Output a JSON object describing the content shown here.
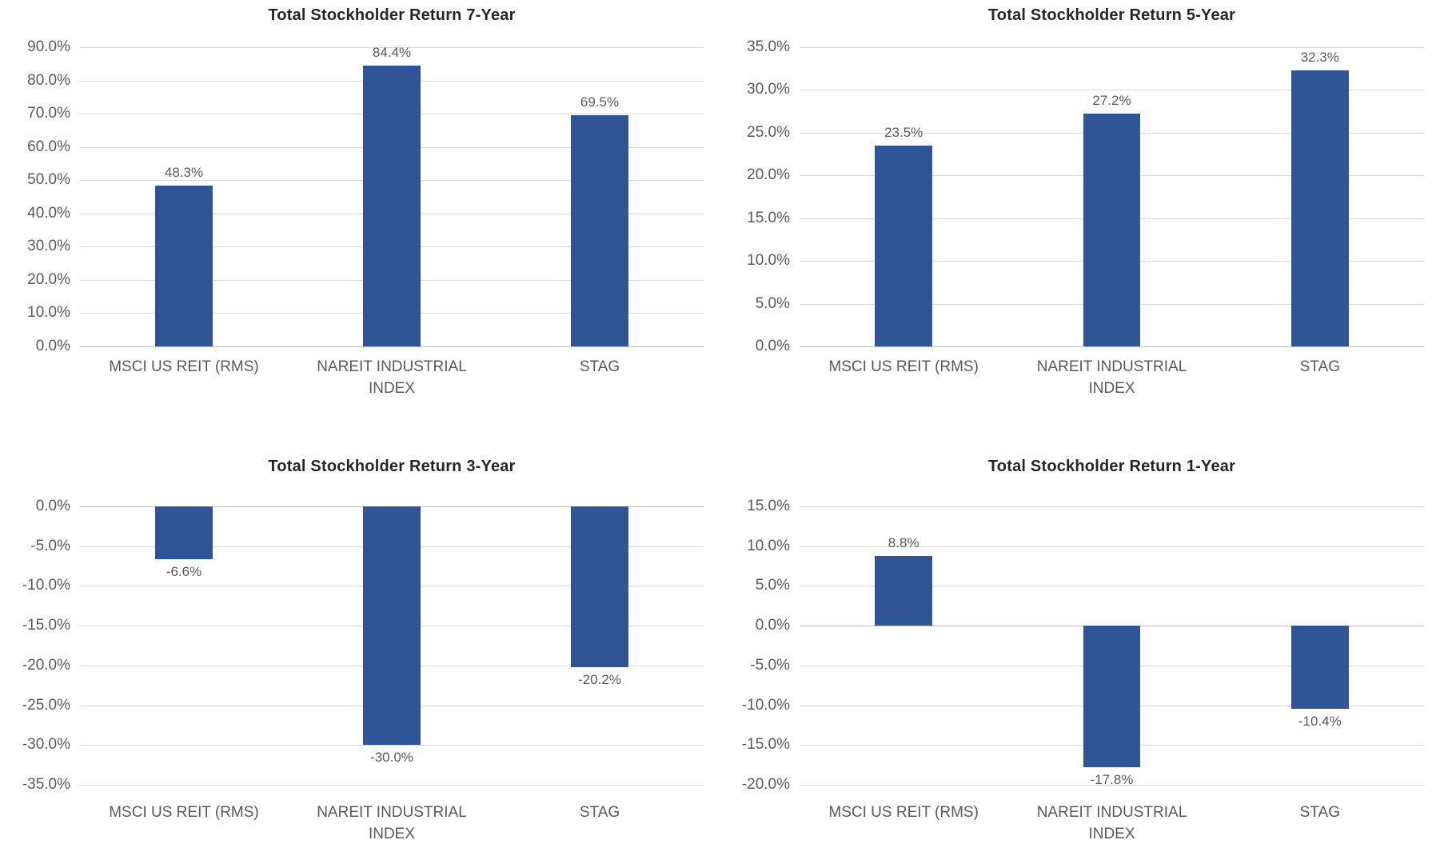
{
  "style": {
    "background": "#FFFFFF",
    "bar_color": "#2F5597",
    "gridline_color": "#D9D9D9",
    "zero_line_color": "#BFBFBF",
    "title_color": "#262626",
    "axis_label_color": "#595959",
    "data_label_color": "#595959"
  },
  "chart_data": [
    {
      "type": "bar",
      "title": "Total Stockholder Return 7-Year",
      "categories": [
        "MSCI US REIT (RMS)",
        "NAREIT INDUSTRIAL\nINDEX",
        "STAG"
      ],
      "values": [
        48.3,
        84.4,
        69.5
      ],
      "data_labels": [
        "48.3%",
        "84.4%",
        "69.5%"
      ],
      "ylim": [
        0,
        90
      ],
      "yticks": [
        {
          "value": 90,
          "label": "90.0%"
        },
        {
          "value": 80,
          "label": "80.0%"
        },
        {
          "value": 70,
          "label": "70.0%"
        },
        {
          "value": 60,
          "label": "60.0%"
        },
        {
          "value": 50,
          "label": "50.0%"
        },
        {
          "value": 40,
          "label": "40.0%"
        },
        {
          "value": 30,
          "label": "30.0%"
        },
        {
          "value": 20,
          "label": "20.0%"
        },
        {
          "value": 10,
          "label": "10.0%"
        },
        {
          "value": 0,
          "label": "0.0%"
        }
      ],
      "xlabel": "",
      "ylabel": "",
      "grid": true,
      "legend": "none"
    },
    {
      "type": "bar",
      "title": "Total Stockholder Return 5-Year",
      "categories": [
        "MSCI US REIT (RMS)",
        "NAREIT INDUSTRIAL\nINDEX",
        "STAG"
      ],
      "values": [
        23.5,
        27.2,
        32.3
      ],
      "data_labels": [
        "23.5%",
        "27.2%",
        "32.3%"
      ],
      "ylim": [
        0,
        35
      ],
      "yticks": [
        {
          "value": 35,
          "label": "35.0%"
        },
        {
          "value": 30,
          "label": "30.0%"
        },
        {
          "value": 25,
          "label": "25.0%"
        },
        {
          "value": 20,
          "label": "20.0%"
        },
        {
          "value": 15,
          "label": "15.0%"
        },
        {
          "value": 10,
          "label": "10.0%"
        },
        {
          "value": 5,
          "label": "5.0%"
        },
        {
          "value": 0,
          "label": "0.0%"
        }
      ],
      "xlabel": "",
      "ylabel": "",
      "grid": true,
      "legend": "none"
    },
    {
      "type": "bar",
      "title": "Total Stockholder Return 3-Year",
      "categories": [
        "MSCI US REIT (RMS)",
        "NAREIT INDUSTRIAL\nINDEX",
        "STAG"
      ],
      "values": [
        -6.6,
        -30.0,
        -20.2
      ],
      "data_labels": [
        "-6.6%",
        "-30.0%",
        "-20.2%"
      ],
      "ylim": [
        -35,
        0
      ],
      "yticks": [
        {
          "value": 0,
          "label": "0.0%"
        },
        {
          "value": -5,
          "label": "-5.0%"
        },
        {
          "value": -10,
          "label": "-10.0%"
        },
        {
          "value": -15,
          "label": "-15.0%"
        },
        {
          "value": -20,
          "label": "-20.0%"
        },
        {
          "value": -25,
          "label": "-25.0%"
        },
        {
          "value": -30,
          "label": "-30.0%"
        },
        {
          "value": -35,
          "label": "-35.0%"
        }
      ],
      "xlabel": "",
      "ylabel": "",
      "grid": true,
      "legend": "none"
    },
    {
      "type": "bar",
      "title": "Total Stockholder Return 1-Year",
      "categories": [
        "MSCI US REIT (RMS)",
        "NAREIT INDUSTRIAL\nINDEX",
        "STAG"
      ],
      "values": [
        8.8,
        -17.8,
        -10.4
      ],
      "data_labels": [
        "8.8%",
        "-17.8%",
        "-10.4%"
      ],
      "ylim": [
        -20,
        15
      ],
      "yticks": [
        {
          "value": 15,
          "label": "15.0%"
        },
        {
          "value": 10,
          "label": "10.0%"
        },
        {
          "value": 5,
          "label": "5.0%"
        },
        {
          "value": 0,
          "label": "0.0%"
        },
        {
          "value": -5,
          "label": "-5.0%"
        },
        {
          "value": -10,
          "label": "-10.0%"
        },
        {
          "value": -15,
          "label": "-15.0%"
        },
        {
          "value": -20,
          "label": "-20.0%"
        }
      ],
      "xlabel": "",
      "ylabel": "",
      "grid": true,
      "legend": "none"
    }
  ]
}
